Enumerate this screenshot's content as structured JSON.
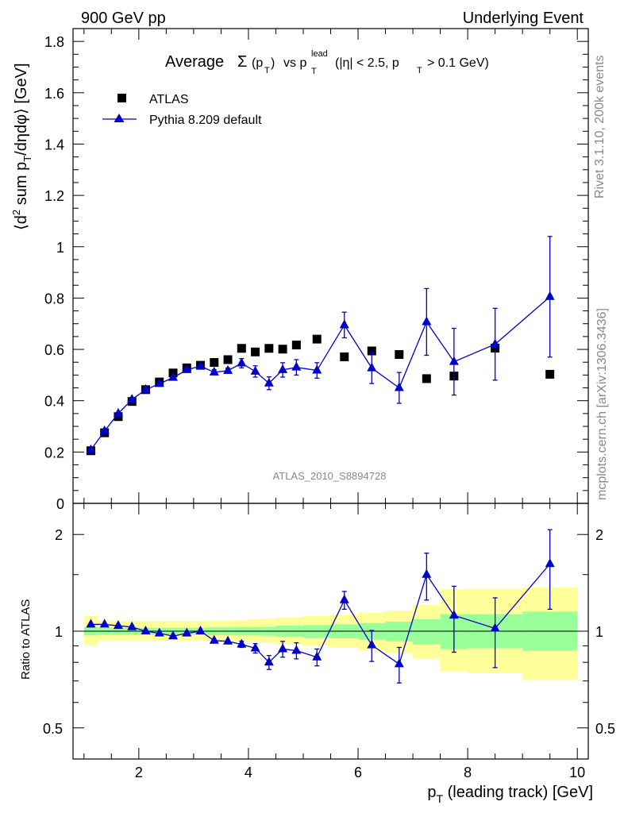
{
  "header": {
    "left": "900 GeV pp",
    "right": "Underlying Event"
  },
  "title": {
    "prefix": "Average",
    "sigma": "Σ",
    "pt_open": "(p",
    "sub_T": "T",
    "pt_close": ")",
    "vs": "vs p",
    "lead": "lead",
    "cuts_a": "(|η| < 2.5, p",
    "cuts_b": "> 0.1 GeV)"
  },
  "watermark": "ATLAS_2010_S8894728",
  "side": {
    "rivet": "Rivet 3.1.10,  200k events",
    "mcplots": "mcplots.cern.ch [arXiv:1306.3436]"
  },
  "labels": {
    "ylabel_main_a": "⟨d",
    "ylabel_main_sup": "2",
    "ylabel_main_b": " sum p",
    "ylabel_main_sub": "T",
    "ylabel_main_c": "/dηdφ⟩ [GeV]",
    "ylabel_ratio": "Ratio to ATLAS",
    "xlabel_a": "p",
    "xlabel_sub": "T",
    "xlabel_b": " (leading track) [GeV]"
  },
  "chart_data": {
    "type": "scatter",
    "main_panel": {
      "ylim": [
        0,
        1.85
      ],
      "yticks": [
        0,
        0.2,
        0.4,
        0.6,
        0.8,
        1,
        1.2,
        1.4,
        1.6,
        1.8
      ],
      "ytick_labels": [
        "0",
        "0.2",
        "0.4",
        "0.6",
        "0.8",
        "1",
        "1.2",
        "1.4",
        "1.6",
        "1.8"
      ]
    },
    "ratio_panel": {
      "ylim": [
        0.4,
        2.5
      ],
      "log": true,
      "yticks": [
        0.5,
        1,
        2
      ],
      "ytick_labels": [
        "0.5",
        "1",
        "2"
      ]
    },
    "xlim": [
      0.8,
      10.2
    ],
    "xticks": [
      2,
      4,
      6,
      8,
      10
    ],
    "xtick_labels": [
      "2",
      "4",
      "6",
      "8",
      "10"
    ],
    "legend_position": "top-left",
    "series": [
      {
        "name": "ATLAS",
        "color": "#000000",
        "marker": "square",
        "x": [
          1.125,
          1.375,
          1.625,
          1.875,
          2.125,
          2.375,
          2.625,
          2.875,
          3.125,
          3.375,
          3.625,
          3.875,
          4.125,
          4.375,
          4.625,
          4.875,
          5.25,
          5.75,
          6.25,
          6.75,
          7.25,
          7.75,
          8.5,
          9.5
        ],
        "y": [
          0.205,
          0.275,
          0.338,
          0.397,
          0.443,
          0.473,
          0.508,
          0.528,
          0.538,
          0.549,
          0.56,
          0.604,
          0.59,
          0.604,
          0.601,
          0.617,
          0.64,
          0.571,
          0.594,
          0.58,
          0.486,
          0.496,
          0.605,
          0.503
        ]
      },
      {
        "name": "Pythia 8.209 default",
        "color": "#0000cc",
        "marker": "triangle",
        "x": [
          1.125,
          1.375,
          1.625,
          1.875,
          2.125,
          2.375,
          2.625,
          2.875,
          3.125,
          3.375,
          3.625,
          3.875,
          4.125,
          4.375,
          4.625,
          4.875,
          5.25,
          5.75,
          6.25,
          6.75,
          7.25,
          7.75,
          8.5,
          9.5
        ],
        "y": [
          0.208,
          0.282,
          0.35,
          0.405,
          0.443,
          0.466,
          0.49,
          0.52,
          0.535,
          0.511,
          0.517,
          0.546,
          0.514,
          0.468,
          0.52,
          0.53,
          0.518,
          0.695,
          0.527,
          0.45,
          0.707,
          0.552,
          0.62,
          0.805
        ],
        "yerr": [
          0,
          0,
          0,
          0,
          0,
          0,
          0,
          0,
          0,
          0.01,
          0.01,
          0.018,
          0.022,
          0.025,
          0.028,
          0.03,
          0.03,
          0.05,
          0.06,
          0.06,
          0.13,
          0.13,
          0.14,
          0.235
        ]
      }
    ],
    "ratio": {
      "x": [
        1.125,
        1.375,
        1.625,
        1.875,
        2.125,
        2.375,
        2.625,
        2.875,
        3.125,
        3.375,
        3.625,
        3.875,
        4.125,
        4.375,
        4.625,
        4.875,
        5.25,
        5.75,
        6.25,
        6.75,
        7.25,
        7.75,
        8.5,
        9.5
      ],
      "y": [
        1.05,
        1.05,
        1.04,
        1.03,
        1.0,
        0.985,
        0.965,
        0.985,
        1.0,
        0.935,
        0.93,
        0.91,
        0.885,
        0.8,
        0.88,
        0.87,
        0.83,
        1.25,
        0.905,
        0.79,
        1.5,
        1.12,
        1.02,
        1.62
      ],
      "yerr": [
        0,
        0,
        0,
        0,
        0,
        0,
        0,
        0,
        0,
        0,
        0,
        0.02,
        0.03,
        0.04,
        0.05,
        0.05,
        0.05,
        0.08,
        0.1,
        0.1,
        0.25,
        0.26,
        0.25,
        0.45
      ],
      "bands": [
        {
          "x0": 1.0,
          "x1": 1.25,
          "inner": [
            0.97,
            1.03
          ],
          "outer": [
            0.905,
            1.115
          ]
        },
        {
          "x0": 1.25,
          "x1": 1.5,
          "inner": [
            0.975,
            1.025
          ],
          "outer": [
            0.935,
            1.08
          ]
        },
        {
          "x0": 1.5,
          "x1": 1.75,
          "inner": [
            0.975,
            1.025
          ],
          "outer": [
            0.935,
            1.075
          ]
        },
        {
          "x0": 1.75,
          "x1": 2.0,
          "inner": [
            0.975,
            1.025
          ],
          "outer": [
            0.935,
            1.075
          ]
        },
        {
          "x0": 2.0,
          "x1": 2.25,
          "inner": [
            0.975,
            1.025
          ],
          "outer": [
            0.935,
            1.075
          ]
        },
        {
          "x0": 2.25,
          "x1": 2.5,
          "inner": [
            0.975,
            1.025
          ],
          "outer": [
            0.935,
            1.075
          ]
        },
        {
          "x0": 2.5,
          "x1": 2.75,
          "inner": [
            0.975,
            1.025
          ],
          "outer": [
            0.935,
            1.075
          ]
        },
        {
          "x0": 2.75,
          "x1": 3.0,
          "inner": [
            0.975,
            1.025
          ],
          "outer": [
            0.935,
            1.075
          ]
        },
        {
          "x0": 3.0,
          "x1": 3.25,
          "inner": [
            0.975,
            1.025
          ],
          "outer": [
            0.935,
            1.075
          ]
        },
        {
          "x0": 3.25,
          "x1": 3.5,
          "inner": [
            0.972,
            1.028
          ],
          "outer": [
            0.93,
            1.08
          ]
        },
        {
          "x0": 3.5,
          "x1": 3.75,
          "inner": [
            0.972,
            1.028
          ],
          "outer": [
            0.93,
            1.08
          ]
        },
        {
          "x0": 3.75,
          "x1": 4.0,
          "inner": [
            0.97,
            1.03
          ],
          "outer": [
            0.928,
            1.085
          ]
        },
        {
          "x0": 4.0,
          "x1": 4.25,
          "inner": [
            0.97,
            1.03
          ],
          "outer": [
            0.925,
            1.09
          ]
        },
        {
          "x0": 4.25,
          "x1": 4.5,
          "inner": [
            0.968,
            1.032
          ],
          "outer": [
            0.92,
            1.095
          ]
        },
        {
          "x0": 4.5,
          "x1": 4.75,
          "inner": [
            0.96,
            1.04
          ],
          "outer": [
            0.91,
            1.105
          ]
        },
        {
          "x0": 4.75,
          "x1": 5.0,
          "inner": [
            0.96,
            1.04
          ],
          "outer": [
            0.91,
            1.105
          ]
        },
        {
          "x0": 5.0,
          "x1": 5.5,
          "inner": [
            0.955,
            1.045
          ],
          "outer": [
            0.9,
            1.115
          ]
        },
        {
          "x0": 5.5,
          "x1": 6.0,
          "inner": [
            0.95,
            1.05
          ],
          "outer": [
            0.89,
            1.125
          ]
        },
        {
          "x0": 6.0,
          "x1": 6.5,
          "inner": [
            0.94,
            1.06
          ],
          "outer": [
            0.87,
            1.145
          ]
        },
        {
          "x0": 6.5,
          "x1": 7.0,
          "inner": [
            0.93,
            1.07
          ],
          "outer": [
            0.855,
            1.16
          ]
        },
        {
          "x0": 7.0,
          "x1": 7.5,
          "inner": [
            0.91,
            1.09
          ],
          "outer": [
            0.82,
            1.21
          ]
        },
        {
          "x0": 7.5,
          "x1": 8.0,
          "inner": [
            0.88,
            1.13
          ],
          "outer": [
            0.75,
            1.35
          ]
        },
        {
          "x0": 8.0,
          "x1": 9.0,
          "inner": [
            0.885,
            1.13
          ],
          "outer": [
            0.74,
            1.355
          ]
        },
        {
          "x0": 9.0,
          "x1": 10.0,
          "inner": [
            0.87,
            1.15
          ],
          "outer": [
            0.705,
            1.37
          ]
        }
      ],
      "band_colors": {
        "inner": "#99ff99",
        "outer": "#ffff99"
      }
    }
  }
}
